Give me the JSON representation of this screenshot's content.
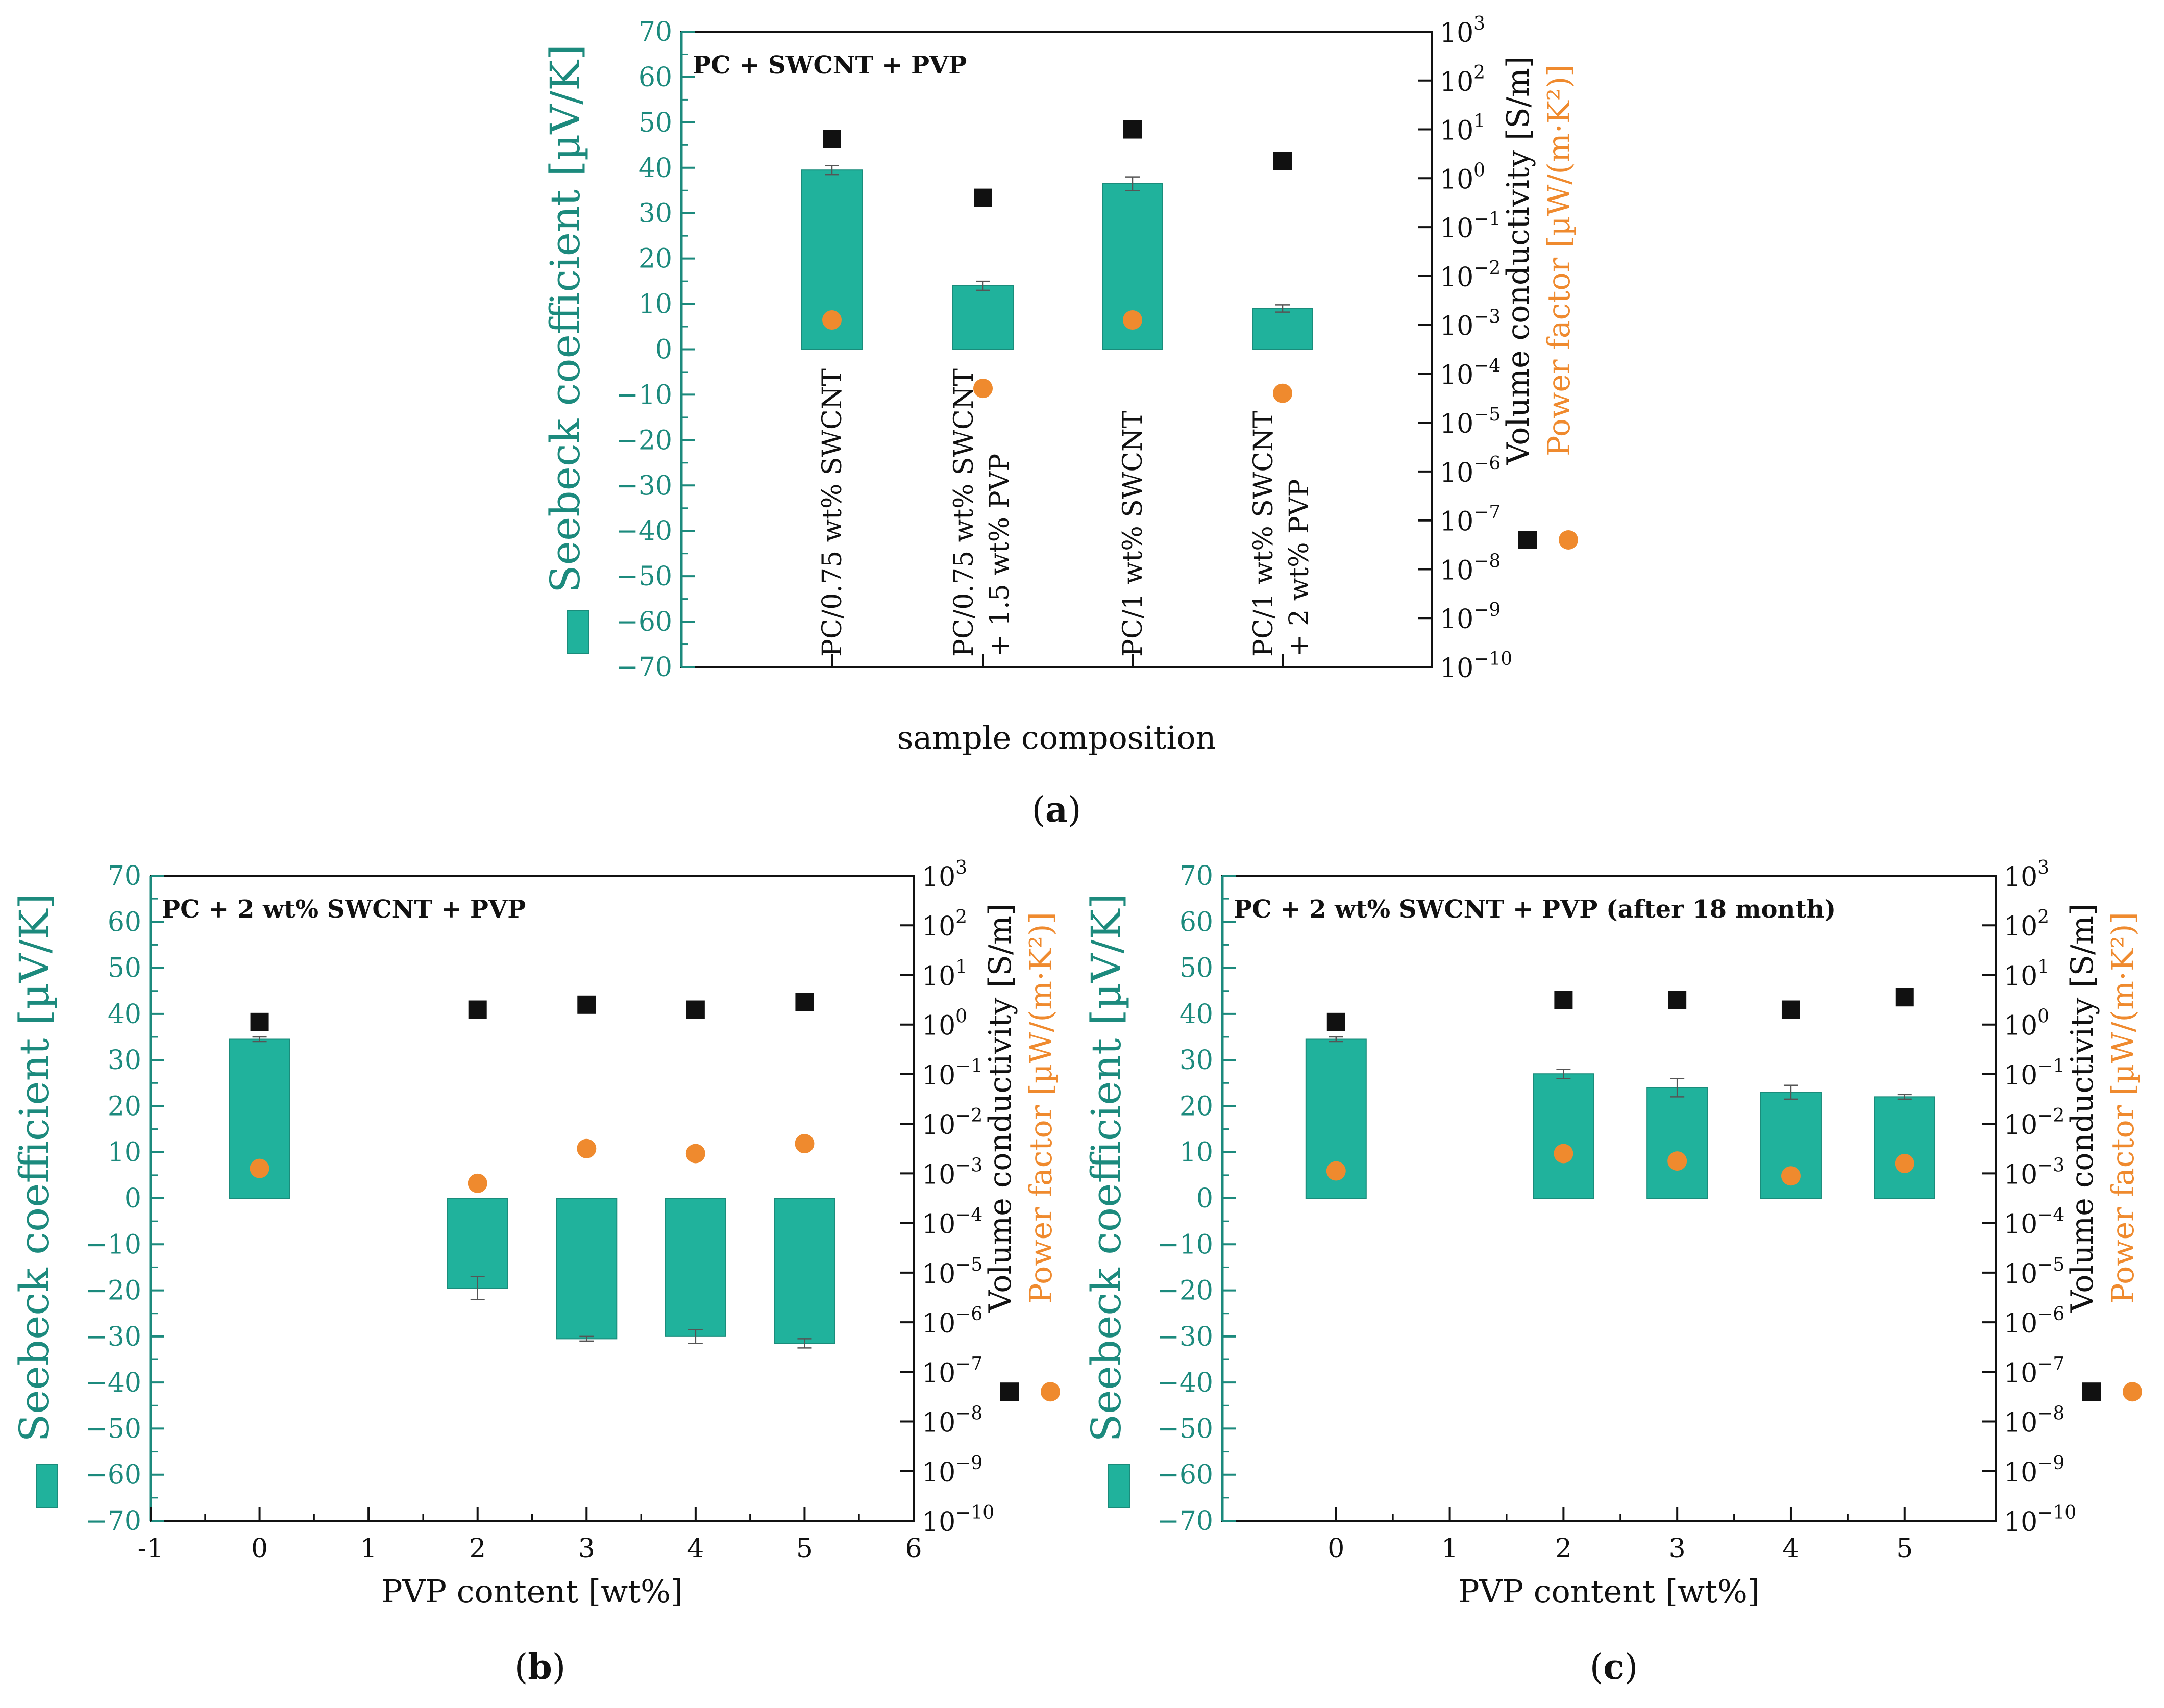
{
  "colors": {
    "bar": "#20b29c",
    "bar_stroke": "#1a8c7b",
    "axis_left": "#1c8a7d",
    "square": "#111111",
    "circle": "#ef8a2e"
  },
  "chart_data": [
    {
      "panel": "a",
      "type": "bar",
      "caption": "a",
      "title": "PC + SWCNT + PVP",
      "xlabel": "sample composition",
      "ylabel_left": "Seebeck coefficient [µV/K]",
      "ylabel_right_1": "Volume conductivity [S/m]",
      "ylabel_right_2": "Power factor [µW/(m·K²)]",
      "ylim_left": [
        -70,
        70
      ],
      "yticks_left": [
        "70",
        "60",
        "50",
        "40",
        "30",
        "20",
        "10",
        "0",
        "−10",
        "−20",
        "−30",
        "−40",
        "−50",
        "−60",
        "−70"
      ],
      "yticks_right": [
        {
          "base": "10",
          "exp": "3"
        },
        {
          "base": "10",
          "exp": "2"
        },
        {
          "base": "10",
          "exp": "1"
        },
        {
          "base": "10",
          "exp": "0"
        },
        {
          "base": "10",
          "exp": "−1"
        },
        {
          "base": "10",
          "exp": "−2"
        },
        {
          "base": "10",
          "exp": "−3"
        },
        {
          "base": "10",
          "exp": "−4"
        },
        {
          "base": "10",
          "exp": "−5"
        },
        {
          "base": "10",
          "exp": "−6"
        },
        {
          "base": "10",
          "exp": "−7"
        },
        {
          "base": "10",
          "exp": "−8"
        },
        {
          "base": "10",
          "exp": "−9"
        },
        {
          "base": "10",
          "exp": "−10"
        }
      ],
      "ylim_right_log": [
        -10,
        3
      ],
      "categories": [
        {
          "line1": "PC/0.75 wt% SWCNT",
          "line2": ""
        },
        {
          "line1": "PC/0.75 wt% SWCNT",
          "line2": "+ 1.5 wt% PVP"
        },
        {
          "line1": "PC/1 wt% SWCNT",
          "line2": ""
        },
        {
          "line1": "PC/1 wt% SWCNT",
          "line2": "+ 2 wt% PVP"
        }
      ],
      "series": [
        {
          "name": "Seebeck coefficient",
          "axis": "left",
          "kind": "bar",
          "values": [
            39.5,
            14,
            36.5,
            9
          ],
          "errors": [
            1,
            1,
            1.5,
            0.8
          ]
        },
        {
          "name": "Volume conductivity",
          "axis": "right",
          "kind": "square",
          "log10_values": [
            0.8,
            -0.4,
            1,
            0.35
          ]
        },
        {
          "name": "Power factor",
          "axis": "right",
          "kind": "circle",
          "log10_values": [
            -2.9,
            -4.3,
            -2.9,
            -4.4
          ]
        }
      ]
    },
    {
      "panel": "b",
      "type": "bar",
      "caption": "b",
      "title": "PC + 2 wt% SWCNT + PVP",
      "xlabel": "PVP content [wt%]",
      "ylabel_left": "Seebeck coefficient [µV/K]",
      "ylabel_right_1": "Volume conductivity [S/m]",
      "ylabel_right_2": "Power factor [µW/(m·K²)]",
      "ylim_left": [
        -70,
        70
      ],
      "yticks_left": [
        "70",
        "60",
        "50",
        "40",
        "30",
        "20",
        "10",
        "0",
        "−10",
        "−20",
        "−30",
        "−40",
        "−50",
        "−60",
        "−70"
      ],
      "yticks_right": [
        {
          "base": "10",
          "exp": "3"
        },
        {
          "base": "10",
          "exp": "2"
        },
        {
          "base": "10",
          "exp": "1"
        },
        {
          "base": "10",
          "exp": "0"
        },
        {
          "base": "10",
          "exp": "−1"
        },
        {
          "base": "10",
          "exp": "−2"
        },
        {
          "base": "10",
          "exp": "−3"
        },
        {
          "base": "10",
          "exp": "−4"
        },
        {
          "base": "10",
          "exp": "−5"
        },
        {
          "base": "10",
          "exp": "−6"
        },
        {
          "base": "10",
          "exp": "−7"
        },
        {
          "base": "10",
          "exp": "−8"
        },
        {
          "base": "10",
          "exp": "−9"
        },
        {
          "base": "10",
          "exp": "−10"
        }
      ],
      "ylim_right_log": [
        -10,
        3
      ],
      "xlim": [
        -1,
        6
      ],
      "xticks": [
        "-1",
        "0",
        "1",
        "2",
        "3",
        "4",
        "5",
        "6"
      ],
      "x": [
        0,
        2,
        3,
        4,
        5
      ],
      "series": [
        {
          "name": "Seebeck coefficient",
          "axis": "left",
          "kind": "bar",
          "values": [
            34.5,
            -19.5,
            -30.5,
            -30,
            -31.5
          ],
          "errors": [
            0.5,
            2.5,
            0.5,
            1.5,
            1
          ]
        },
        {
          "name": "Volume conductivity",
          "axis": "right",
          "kind": "square",
          "log10_values": [
            0.05,
            0.3,
            0.4,
            0.3,
            0.45
          ]
        },
        {
          "name": "Power factor",
          "axis": "right",
          "kind": "circle",
          "log10_values": [
            -2.9,
            -3.2,
            -2.5,
            -2.6,
            -2.4
          ]
        }
      ]
    },
    {
      "panel": "c",
      "type": "bar",
      "caption": "c",
      "title": "PC + 2 wt% SWCNT + PVP (after 18 month)",
      "xlabel": "PVP content [wt%]",
      "ylabel_left": "Seebeck coefficient [µV/K]",
      "ylabel_right_1": "Volume conductivity [S/m]",
      "ylabel_right_2": "Power factor [µW/(m·K²)]",
      "ylim_left": [
        -70,
        70
      ],
      "yticks_left": [
        "70",
        "60",
        "50",
        "40",
        "30",
        "20",
        "10",
        "0",
        "−10",
        "−20",
        "−30",
        "−40",
        "−50",
        "−60",
        "−70"
      ],
      "yticks_right": [
        {
          "base": "10",
          "exp": "3"
        },
        {
          "base": "10",
          "exp": "2"
        },
        {
          "base": "10",
          "exp": "1"
        },
        {
          "base": "10",
          "exp": "0"
        },
        {
          "base": "10",
          "exp": "−1"
        },
        {
          "base": "10",
          "exp": "−2"
        },
        {
          "base": "10",
          "exp": "−3"
        },
        {
          "base": "10",
          "exp": "−4"
        },
        {
          "base": "10",
          "exp": "−5"
        },
        {
          "base": "10",
          "exp": "−6"
        },
        {
          "base": "10",
          "exp": "−7"
        },
        {
          "base": "10",
          "exp": "−8"
        },
        {
          "base": "10",
          "exp": "−9"
        },
        {
          "base": "10",
          "exp": "−10"
        }
      ],
      "ylim_right_log": [
        -10,
        3
      ],
      "xlim": [
        -1,
        6
      ],
      "xticks": [
        "0",
        "1",
        "2",
        "3",
        "4",
        "5"
      ],
      "x": [
        0,
        2,
        3,
        4,
        5
      ],
      "series": [
        {
          "name": "Seebeck coefficient",
          "axis": "left",
          "kind": "bar",
          "values": [
            34.5,
            27,
            24,
            23,
            22
          ],
          "errors": [
            0.5,
            1,
            2,
            1.5,
            0.5
          ]
        },
        {
          "name": "Volume conductivity",
          "axis": "right",
          "kind": "square",
          "log10_values": [
            0.05,
            0.5,
            0.5,
            0.3,
            0.55
          ]
        },
        {
          "name": "Power factor",
          "axis": "right",
          "kind": "circle",
          "log10_values": [
            -2.95,
            -2.6,
            -2.75,
            -3.05,
            -2.8
          ]
        }
      ]
    }
  ]
}
